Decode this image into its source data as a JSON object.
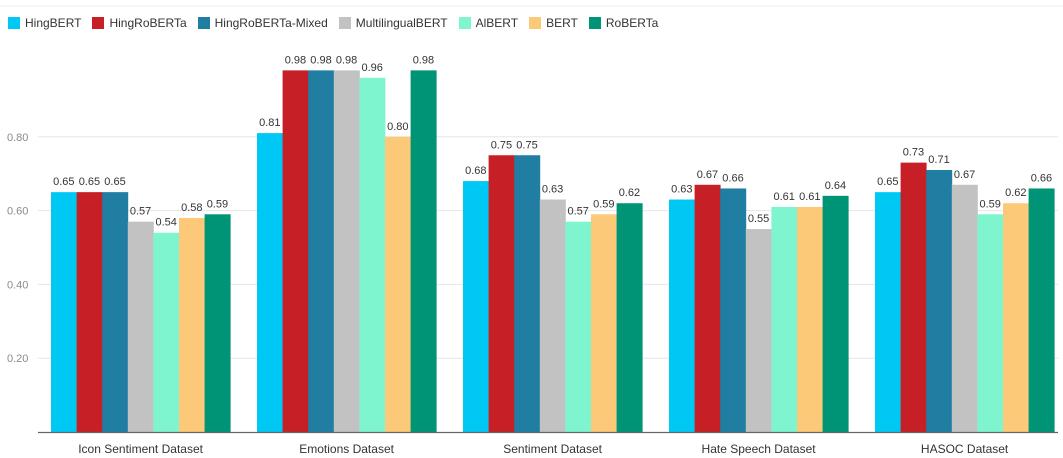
{
  "chart_data": {
    "type": "bar",
    "categories": [
      "Icon Sentiment Dataset",
      "Emotions Dataset",
      "Sentiment Dataset",
      "Hate Speech Dataset",
      "HASOC Dataset"
    ],
    "series": [
      {
        "name": "HingBERT",
        "color": "#00c8f5",
        "values": [
          0.65,
          0.81,
          0.68,
          0.63,
          0.65
        ],
        "labels": [
          "0.65",
          "0.81",
          "0.68",
          "0.63",
          "0.65"
        ]
      },
      {
        "name": "HingRoBERTa",
        "color": "#c71f26",
        "values": [
          0.65,
          0.98,
          0.75,
          0.67,
          0.73
        ],
        "labels": [
          "0.65",
          "0.98",
          "0.75",
          "0.67",
          "0.73"
        ]
      },
      {
        "name": "HingRoBERTa-Mixed",
        "color": "#1f7ea1",
        "values": [
          0.65,
          0.98,
          0.75,
          0.66,
          0.71
        ],
        "labels": [
          "0.65",
          "0.98",
          "0.75",
          "0.66",
          "0.71"
        ]
      },
      {
        "name": "MultilingualBERT",
        "color": "#c2c2c2",
        "values": [
          0.57,
          0.98,
          0.63,
          0.55,
          0.67
        ],
        "labels": [
          "0.57",
          "0.98",
          "0.63",
          "0.55",
          "0.67"
        ]
      },
      {
        "name": "AlBERT",
        "color": "#7ff5cf",
        "values": [
          0.54,
          0.96,
          0.57,
          0.61,
          0.59
        ],
        "labels": [
          "0.54",
          "0.96",
          "0.57",
          "0.61",
          "0.59"
        ]
      },
      {
        "name": "BERT",
        "color": "#fcc978",
        "values": [
          0.58,
          0.8,
          0.59,
          0.61,
          0.62
        ],
        "labels": [
          "0.58",
          "0.80",
          "0.59",
          "0.61",
          "0.62"
        ]
      },
      {
        "name": "RoBERTa",
        "color": "#009477",
        "values": [
          0.59,
          0.98,
          0.62,
          0.64,
          0.66
        ],
        "labels": [
          "0.59",
          "0.98",
          "0.62",
          "0.64",
          "0.66"
        ]
      }
    ],
    "yticks": [
      "0.20",
      "0.40",
      "0.60",
      "0.80"
    ],
    "ylim": [
      0,
      1.05
    ],
    "grid": true,
    "legend": "top-left",
    "title": "",
    "xlabel": "",
    "ylabel": ""
  }
}
